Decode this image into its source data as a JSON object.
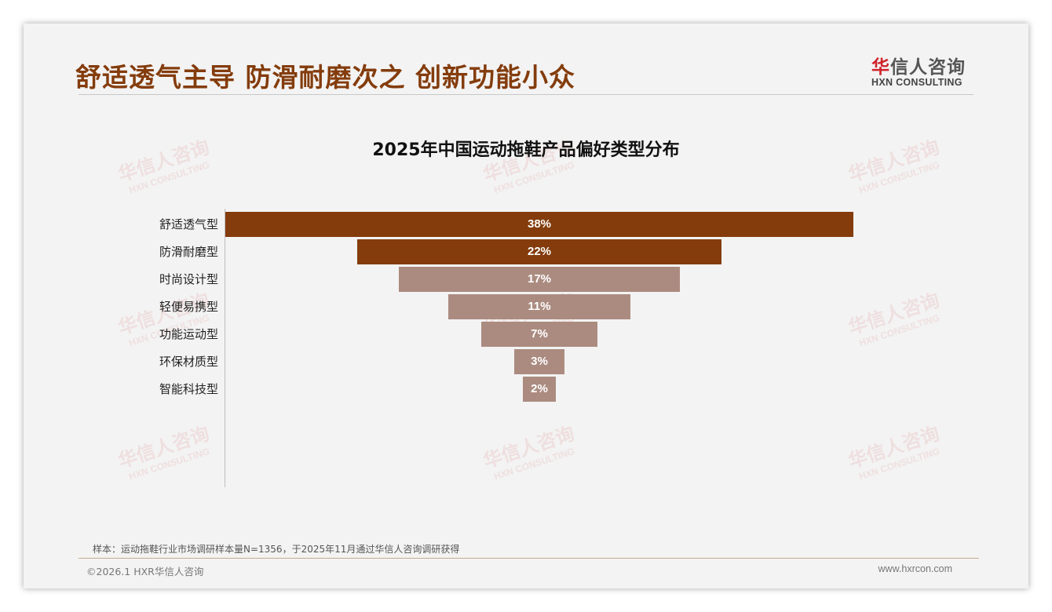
{
  "header": {
    "title": "舒适透气主导 防滑耐磨次之 创新功能小众"
  },
  "logo": {
    "cn_first": "华",
    "cn_rest": "信人咨询",
    "en": "HXN CONSULTING"
  },
  "watermark": {
    "cn": "华信人咨询",
    "en": "HXN CONSULTING"
  },
  "colors": {
    "primary": "#843C0C",
    "secondary": "#AB8B80"
  },
  "chart_data": {
    "type": "bar",
    "orientation": "horizontal-funnel",
    "title": "2025年中国运动拖鞋产品偏好类型分布",
    "categories": [
      "舒适透气型",
      "防滑耐磨型",
      "时尚设计型",
      "轻便易携型",
      "功能运动型",
      "环保材质型",
      "智能科技型"
    ],
    "values": [
      38,
      22,
      17,
      11,
      7,
      3,
      2
    ],
    "labels": [
      "38%",
      "22%",
      "17%",
      "11%",
      "7%",
      "3%",
      "2%"
    ],
    "highlight_count": 2,
    "unit": "%"
  },
  "footer": {
    "note": "样本：运动拖鞋行业市场调研样本量N=1356，于2025年11月通过华信人咨询调研获得",
    "copyright": "©2026.1 HXR华信人咨询",
    "website": "www.hxrcon.com"
  }
}
